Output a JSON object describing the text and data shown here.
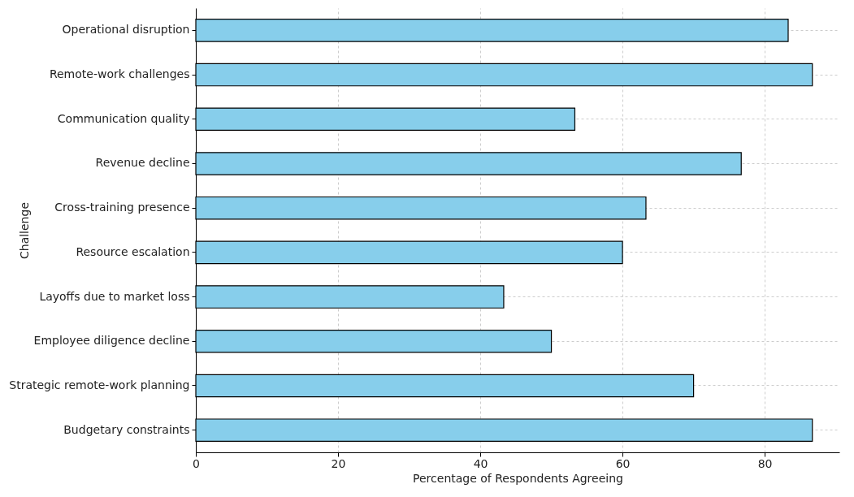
{
  "chart_data": {
    "type": "bar",
    "orientation": "horizontal",
    "xlabel": "Percentage of Respondents Agreeing",
    "ylabel": "Challenge",
    "categories": [
      "Operational disruption",
      "Remote-work challenges",
      "Communication quality",
      "Revenue decline",
      "Cross-training presence",
      "Resource escalation",
      "Layoffs due to market loss",
      "Employee diligence decline",
      "Strategic remote-work planning",
      "Budgetary constraints"
    ],
    "values": [
      83.3,
      86.7,
      53.3,
      76.7,
      63.3,
      60,
      43.3,
      50,
      70,
      86.7
    ],
    "color": "#87ceeb",
    "xlim": [
      0,
      90.5
    ],
    "xticks": [
      0,
      20,
      40,
      60,
      80
    ],
    "grid": true
  }
}
